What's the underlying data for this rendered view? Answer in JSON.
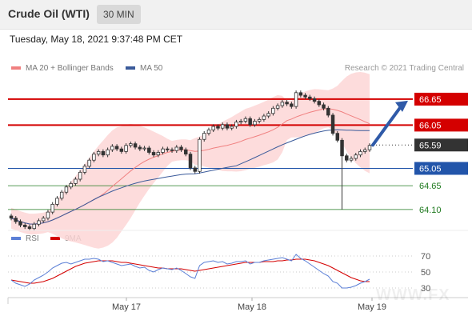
{
  "header": {
    "title": "Crude Oil (WTI)",
    "timeframe": "30 MIN"
  },
  "timestamp": "Tuesday, May 18, 2021 9:37:48 PM CET",
  "legend": {
    "ma20_bb": "MA 20 + Bollinger Bands",
    "ma50": "MA 50",
    "rsi": "RSI",
    "ma9": "9MA"
  },
  "credit": "Research © 2021 Trading Central",
  "watermark": "WWW.FX",
  "colors": {
    "resistance": "#d40000",
    "pivot_box": "#333333",
    "support1": "#2255aa",
    "support2": "#1f7a1f",
    "bb_fill": "#fdd6d6",
    "ma20": "#f08080",
    "ma50": "#3a5a9a",
    "rsi": "#5b7fd6",
    "arrow": "#2f5aa8"
  },
  "chart_data": [
    {
      "type": "line",
      "panel": "price",
      "x_ticks": [
        "May 17",
        "May 18",
        "May 19"
      ],
      "ylim": [
        63.58,
        67.0
      ],
      "levels": [
        {
          "value": 66.65,
          "label": "66.65",
          "style": "resistance"
        },
        {
          "value": 66.05,
          "label": "66.05",
          "style": "resistance"
        },
        {
          "value": 65.59,
          "label": "65.59",
          "style": "pivot"
        },
        {
          "value": 65.05,
          "label": "65.05",
          "style": "support-major"
        },
        {
          "value": 64.65,
          "label": "64.65",
          "style": "support-minor"
        },
        {
          "value": 64.1,
          "label": "64.10",
          "style": "support-minor"
        }
      ],
      "close": [
        63.9,
        63.82,
        63.74,
        63.7,
        63.66,
        63.76,
        63.84,
        63.9,
        64.04,
        64.22,
        64.36,
        64.5,
        64.62,
        64.7,
        64.8,
        64.96,
        65.1,
        65.24,
        65.38,
        65.44,
        65.36,
        65.48,
        65.56,
        65.5,
        65.44,
        65.58,
        65.62,
        65.54,
        65.5,
        65.52,
        65.42,
        65.36,
        65.42,
        65.5,
        65.48,
        65.46,
        65.54,
        65.48,
        65.38,
        65.06,
        64.98,
        65.72,
        65.86,
        65.94,
        66.02,
        65.98,
        66.06,
        65.98,
        66.02,
        66.12,
        66.14,
        66.2,
        66.06,
        66.14,
        66.18,
        66.26,
        66.32,
        66.44,
        66.5,
        66.58,
        66.54,
        66.48,
        66.8,
        66.74,
        66.7,
        66.66,
        66.6,
        66.52,
        66.44,
        66.28,
        65.86,
        65.7,
        65.34,
        65.24,
        65.28,
        65.36,
        65.44,
        65.48,
        65.58
      ],
      "forecast": [
        65.59,
        66.65
      ]
    },
    {
      "type": "line",
      "panel": "rsi",
      "ylim": [
        20,
        80
      ],
      "y_ticks": [
        70,
        50,
        30
      ],
      "y_tick_labels": [
        "70",
        "50",
        "30"
      ],
      "grid": "dotted",
      "rsi": [
        40,
        36,
        34,
        32,
        35,
        40,
        43,
        46,
        50,
        55,
        58,
        61,
        62,
        60,
        62,
        64,
        66,
        66,
        67,
        66,
        63,
        64,
        62,
        60,
        58,
        59,
        60,
        57,
        55,
        56,
        52,
        50,
        53,
        55,
        54,
        53,
        55,
        52,
        48,
        44,
        42,
        58,
        62,
        63,
        64,
        62,
        63,
        60,
        61,
        63,
        63,
        64,
        60,
        62,
        62,
        64,
        65,
        66,
        67,
        68,
        66,
        64,
        72,
        67,
        64,
        60,
        56,
        52,
        48,
        45,
        38,
        36,
        30,
        30,
        31,
        33,
        36,
        38,
        41
      ],
      "ma9": [
        40,
        39,
        38,
        37,
        36,
        36,
        37,
        38,
        40,
        42,
        45,
        48,
        51,
        54,
        57,
        59,
        61,
        62,
        63,
        64,
        64,
        64,
        64,
        63,
        62,
        62,
        61,
        60,
        59,
        58,
        57,
        56,
        55,
        55,
        54,
        54,
        54,
        54,
        53,
        52,
        51,
        52,
        53,
        54,
        55,
        56,
        57,
        58,
        59,
        60,
        61,
        62,
        62,
        62,
        62,
        63,
        63,
        63,
        64,
        64,
        65,
        65,
        66,
        66,
        66,
        65,
        64,
        62,
        60,
        58,
        55,
        52,
        49,
        46,
        43,
        41,
        39,
        38,
        38
      ]
    }
  ]
}
